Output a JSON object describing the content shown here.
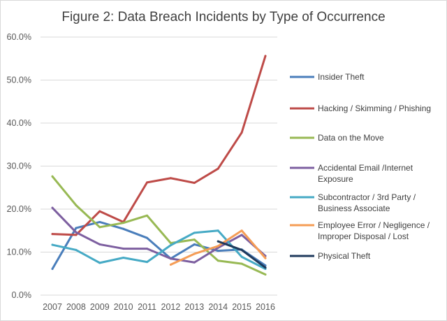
{
  "chart_data": {
    "type": "line",
    "title": "Figure 2:  Data Breach Incidents by Type of Occurrence",
    "x": [
      "2007",
      "2008",
      "2009",
      "2010",
      "2011",
      "2012",
      "2013",
      "2014",
      "2015",
      "2016"
    ],
    "ylim": [
      0,
      60
    ],
    "yticks": [
      "0.0%",
      "10.0%",
      "20.0%",
      "30.0%",
      "40.0%",
      "50.0%",
      "60.0%"
    ],
    "grid": true,
    "legend_position": "right",
    "series": [
      {
        "name": "Insider Theft",
        "lines": [
          "Insider Theft"
        ],
        "color": "#4a7ebb",
        "values": [
          6.1,
          15.6,
          17.0,
          15.4,
          13.3,
          8.5,
          11.8,
          10.3,
          10.6,
          6.9
        ]
      },
      {
        "name": "Hacking / Skimming / Phishing",
        "lines": [
          "Hacking / Skimming / Phishing"
        ],
        "color": "#be4b48",
        "values": [
          14.2,
          14.0,
          19.5,
          17.0,
          26.2,
          27.2,
          26.1,
          29.4,
          37.8,
          55.6
        ]
      },
      {
        "name": "Data on the Move",
        "lines": [
          "Data on the Move"
        ],
        "color": "#98b954",
        "values": [
          27.6,
          20.9,
          15.8,
          16.8,
          18.5,
          12.1,
          12.9,
          8.0,
          7.3,
          4.8
        ]
      },
      {
        "name": "Accidental Email  /Internet Exposure",
        "lines": [
          "Accidental Email  /Internet",
          "Exposure"
        ],
        "color": "#7d5fa0",
        "values": [
          20.3,
          14.6,
          11.8,
          10.8,
          10.8,
          8.5,
          7.6,
          11.0,
          14.0,
          9.1
        ]
      },
      {
        "name": "Subcontractor / 3rd Party / Business Associate",
        "lines": [
          "Subcontractor / 3rd Party /",
          "Business Associate"
        ],
        "color": "#46aac5",
        "values": [
          11.7,
          10.5,
          7.5,
          8.7,
          7.7,
          11.6,
          14.5,
          15.0,
          8.9,
          6.1
        ]
      },
      {
        "name": "Employee Error / Negligence / Improper Disposal / Lost",
        "lines": [
          "Employee Error / Negligence /",
          "Improper Disposal / Lost"
        ],
        "color": "#f59d56",
        "values": [
          null,
          null,
          null,
          null,
          null,
          7.1,
          9.6,
          11.4,
          15.0,
          8.6
        ]
      },
      {
        "name": "Physical Theft",
        "lines": [
          "Physical Theft"
        ],
        "color": "#1f3a5c",
        "values": [
          null,
          null,
          null,
          null,
          null,
          null,
          null,
          12.5,
          10.5,
          6.4
        ]
      }
    ]
  }
}
